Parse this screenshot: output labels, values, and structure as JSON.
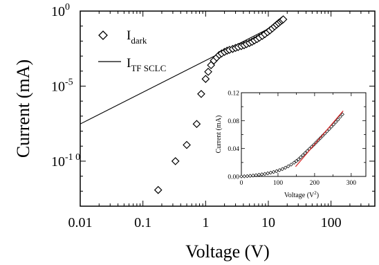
{
  "chart_data": [
    {
      "type": "scatter",
      "xlabel": "Voltage (V)",
      "ylabel": "Current (mA)",
      "xscale": "log",
      "yscale": "log",
      "xlim": [
        0.01,
        500
      ],
      "ylim": [
        1e-13,
        1
      ],
      "x_ticks": [
        {
          "value": 0.01,
          "label": "0.01"
        },
        {
          "value": 0.1,
          "label": "0.1"
        },
        {
          "value": 1,
          "label": "1"
        },
        {
          "value": 10,
          "label": "10"
        },
        {
          "value": 100,
          "label": "100"
        }
      ],
      "y_ticks": [
        {
          "value": 1,
          "base": "10",
          "exp": "0"
        },
        {
          "value": 1e-05,
          "base": "10",
          "exp": "-5"
        },
        {
          "value": 1e-10,
          "base": "10",
          "exp": "-1 0"
        }
      ],
      "legend": {
        "placement": "top-left",
        "entries": [
          {
            "marker": "diamond",
            "label": "I",
            "sub": "dark"
          },
          {
            "marker": "line",
            "label": "I",
            "sub": "TF SCLC"
          }
        ]
      },
      "series": [
        {
          "name": "Idark",
          "marker": "diamond",
          "points": [
            [
              0.175,
              1.2e-12
            ],
            [
              0.33,
              1e-10
            ],
            [
              0.5,
              1.2e-09
            ],
            [
              0.72,
              3e-08
            ],
            [
              0.85,
              3e-06
            ],
            [
              1.0,
              3e-05
            ],
            [
              1.1,
              9e-05
            ],
            [
              1.22,
              0.00025
            ],
            [
              1.35,
              0.0005
            ],
            [
              1.5,
              0.0008
            ],
            [
              1.65,
              0.0012
            ],
            [
              1.8,
              0.0015
            ],
            [
              2.0,
              0.0019
            ],
            [
              2.2,
              0.0023
            ],
            [
              2.4,
              0.0026
            ],
            [
              2.7,
              0.003
            ],
            [
              3.0,
              0.0035
            ],
            [
              3.3,
              0.004
            ],
            [
              3.7,
              0.0046
            ],
            [
              4.1,
              0.0053
            ],
            [
              4.5,
              0.0063
            ],
            [
              5.0,
              0.0075
            ],
            [
              5.5,
              0.009
            ],
            [
              6.0,
              0.011
            ],
            [
              6.6,
              0.0135
            ],
            [
              7.2,
              0.017
            ],
            [
              8.0,
              0.022
            ],
            [
              8.8,
              0.029
            ],
            [
              9.7,
              0.039
            ],
            [
              10.6,
              0.052
            ],
            [
              11.6,
              0.07
            ],
            [
              12.6,
              0.095
            ],
            [
              13.6,
              0.125
            ],
            [
              14.6,
              0.16
            ],
            [
              15.6,
              0.2
            ],
            [
              16.5,
              0.24
            ],
            [
              17.3,
              0.28
            ]
          ]
        },
        {
          "name": "ITF SCLC",
          "type": "line",
          "points": [
            [
              0.01,
              3e-08
            ],
            [
              16,
              0.178
            ]
          ]
        }
      ]
    },
    {
      "type": "scatter",
      "inset": true,
      "xlabel": "Voltage (V",
      "xlabel_sup": "2",
      "xlabel_end": ")",
      "ylabel": "Current (mA)",
      "xlim": [
        0,
        340
      ],
      "ylim": [
        0,
        0.12
      ],
      "x_ticks": [
        {
          "value": 0,
          "label": "0"
        },
        {
          "value": 100,
          "label": "100"
        },
        {
          "value": 200,
          "label": "200"
        },
        {
          "value": 300,
          "label": "300"
        }
      ],
      "y_ticks": [
        {
          "value": 0.0,
          "label": "0.00"
        },
        {
          "value": 0.04,
          "label": "0.04"
        },
        {
          "value": 0.08,
          "label": "0.08"
        },
        {
          "value": 0.12,
          "label": "0.12"
        }
      ],
      "series": [
        {
          "name": "data",
          "marker": "diamond",
          "points": [
            [
              0,
              0.0
            ],
            [
              8,
              0.0002
            ],
            [
              16,
              0.0005
            ],
            [
              24,
              0.0009
            ],
            [
              32,
              0.0013
            ],
            [
              40,
              0.0018
            ],
            [
              48,
              0.0024
            ],
            [
              56,
              0.003
            ],
            [
              64,
              0.0037
            ],
            [
              72,
              0.0045
            ],
            [
              80,
              0.0054
            ],
            [
              88,
              0.0064
            ],
            [
              96,
              0.0076
            ],
            [
              104,
              0.009
            ],
            [
              112,
              0.0106
            ],
            [
              120,
              0.0125
            ],
            [
              128,
              0.0146
            ],
            [
              136,
              0.017
            ],
            [
              144,
              0.0198
            ],
            [
              150,
              0.022
            ],
            [
              156,
              0.0245
            ],
            [
              162,
              0.0275
            ],
            [
              168,
              0.0305
            ],
            [
              174,
              0.0335
            ],
            [
              180,
              0.0365
            ],
            [
              186,
              0.0395
            ],
            [
              192,
              0.0425
            ],
            [
              198,
              0.0455
            ],
            [
              204,
              0.0487
            ],
            [
              210,
              0.0519
            ],
            [
              216,
              0.0551
            ],
            [
              222,
              0.0583
            ],
            [
              228,
              0.0615
            ],
            [
              234,
              0.0648
            ],
            [
              240,
              0.068
            ],
            [
              246,
              0.0713
            ],
            [
              252,
              0.0745
            ],
            [
              258,
              0.078
            ],
            [
              264,
              0.0815
            ],
            [
              270,
              0.0854
            ],
            [
              276,
              0.089
            ]
          ]
        },
        {
          "name": "fit",
          "type": "line",
          "color": "#d62020",
          "points": [
            [
              148,
              0.014
            ],
            [
              278,
              0.094
            ]
          ]
        }
      ]
    }
  ]
}
